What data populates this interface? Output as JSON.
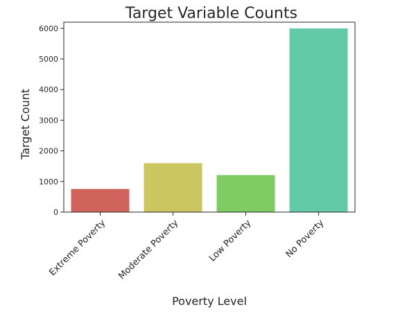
{
  "chart_data": {
    "type": "bar",
    "title": "Target Variable Counts",
    "xlabel": "Poverty Level",
    "ylabel": "Target Count",
    "categories": [
      "Extreme Poverty",
      "Moderate Poverty",
      "Low Poverty",
      "No Poverty"
    ],
    "values": [
      755,
      1597,
      1209,
      5996
    ],
    "colors": [
      "#d0645c",
      "#ccc660",
      "#7fcc62",
      "#63caa7"
    ],
    "ylim": [
      0,
      6200
    ],
    "yticks": [
      0,
      1000,
      2000,
      3000,
      4000,
      5000,
      6000
    ],
    "grid": false,
    "legend": "none"
  }
}
